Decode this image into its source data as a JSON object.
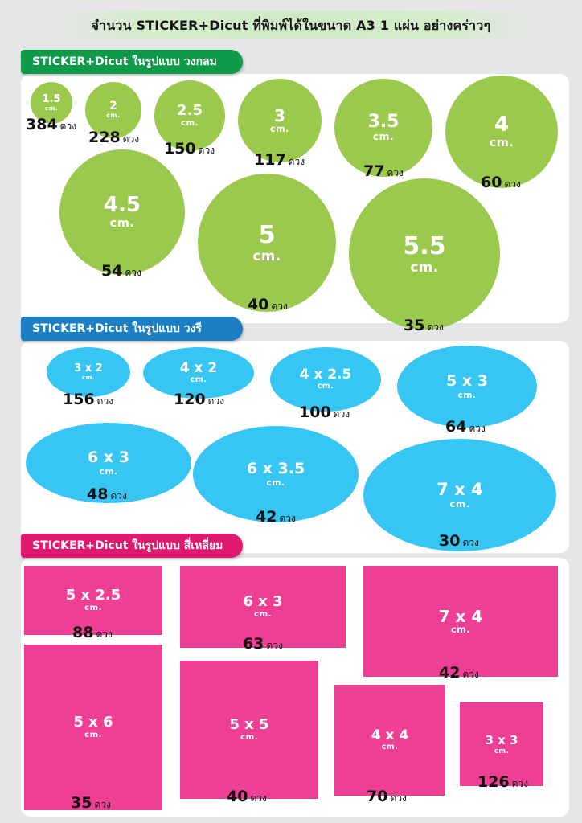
{
  "title": "จำนวน STICKER+Dicut ที่พิมพ์ได้ในขนาด A3  1 แผ่น อย่างคร่าวๆ",
  "unit_word": "ดวง",
  "colors": {
    "circle_tag": "#0f9a4a",
    "circle": "#9bc94d",
    "oval_tag": "#1c7fc4",
    "oval": "#37c5f3",
    "rect_tag": "#e0196f",
    "rect": "#ee3f95"
  },
  "circles": {
    "tag": "STICKER+Dicut ในรูปแบบ วงกลม",
    "items": [
      {
        "size": "1.5",
        "unit": "cm.",
        "count": "384"
      },
      {
        "size": "2",
        "unit": "cm.",
        "count": "228"
      },
      {
        "size": "2.5",
        "unit": "cm.",
        "count": "150"
      },
      {
        "size": "3",
        "unit": "cm.",
        "count": "117"
      },
      {
        "size": "3.5",
        "unit": "cm.",
        "count": "77"
      },
      {
        "size": "4",
        "unit": "cm.",
        "count": "60"
      },
      {
        "size": "4.5",
        "unit": "cm.",
        "count": "54"
      },
      {
        "size": "5",
        "unit": "cm.",
        "count": "40"
      },
      {
        "size": "5.5",
        "unit": "cm.",
        "count": "35"
      }
    ]
  },
  "ovals": {
    "tag": "STICKER+Dicut ในรูปแบบ วงรี",
    "items": [
      {
        "size": "3 x 2",
        "unit": "cm.",
        "count": "156"
      },
      {
        "size": "4 x 2",
        "unit": "cm.",
        "count": "120"
      },
      {
        "size": "4 x 2.5",
        "unit": "cm.",
        "count": "100"
      },
      {
        "size": "5 x 3",
        "unit": "cm.",
        "count": "64"
      },
      {
        "size": "6 x 3",
        "unit": "cm.",
        "count": "48"
      },
      {
        "size": "6 x 3.5",
        "unit": "cm.",
        "count": "42"
      },
      {
        "size": "7 x 4",
        "unit": "cm.",
        "count": "30"
      }
    ]
  },
  "rects": {
    "tag": "STICKER+Dicut ในรูปแบบ สี่เหลี่ยม",
    "items": [
      {
        "size": "5 x 2.5",
        "unit": "cm.",
        "count": "88"
      },
      {
        "size": "6 x 3",
        "unit": "cm.",
        "count": "63"
      },
      {
        "size": "7 x 4",
        "unit": "cm.",
        "count": "42"
      },
      {
        "size": "5 x 6",
        "unit": "cm.",
        "count": "35"
      },
      {
        "size": "5 x 5",
        "unit": "cm.",
        "count": "40"
      },
      {
        "size": "4 x 4",
        "unit": "cm.",
        "count": "70"
      },
      {
        "size": "3 x 3",
        "unit": "cm.",
        "count": "126"
      }
    ]
  }
}
